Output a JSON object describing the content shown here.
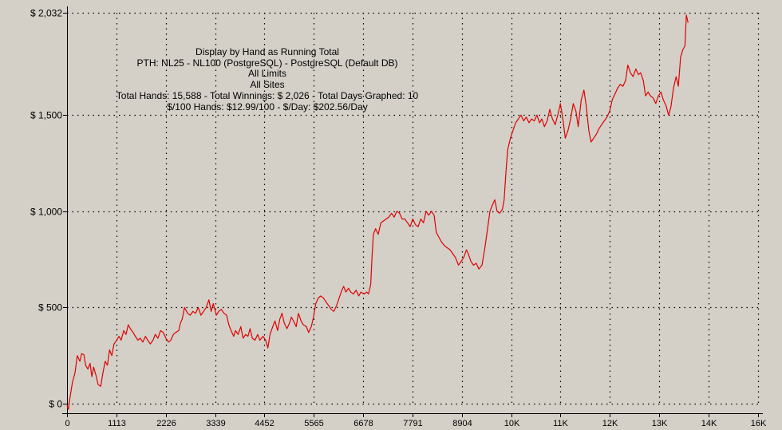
{
  "chart_data": {
    "type": "line",
    "annotations": [
      "Display by Hand as Running Total",
      "PTH: NL25 - NL100 (PostgreSQL) - PostgreSQL (Default DB)",
      "All Limits",
      "All Sites",
      "Total Hands: 15,588 - Total Winnings: $ 2,026 - Total Days Graphed: 10",
      "$/100 Hands: $12.99/100 - $/Day: $202.56/Day"
    ],
    "xlabel": "",
    "ylabel": "",
    "x_ticks": [
      {
        "value": 0,
        "label": "0"
      },
      {
        "value": 1113,
        "label": "1113"
      },
      {
        "value": 2226,
        "label": "2226"
      },
      {
        "value": 3339,
        "label": "3339"
      },
      {
        "value": 4452,
        "label": "4452"
      },
      {
        "value": 5565,
        "label": "5565"
      },
      {
        "value": 6678,
        "label": "6678"
      },
      {
        "value": 7791,
        "label": "7791"
      },
      {
        "value": 8904,
        "label": "8904"
      },
      {
        "value": 10017,
        "label": "10K"
      },
      {
        "value": 11130,
        "label": "11K"
      },
      {
        "value": 12243,
        "label": "12K"
      },
      {
        "value": 13356,
        "label": "13K"
      },
      {
        "value": 14469,
        "label": "14K"
      },
      {
        "value": 15582,
        "label": "16K"
      }
    ],
    "y_ticks": [
      {
        "value": 0,
        "label": "$ 0"
      },
      {
        "value": 500,
        "label": "$ 500"
      },
      {
        "value": 1000,
        "label": "$ 1,000"
      },
      {
        "value": 1500,
        "label": "$ 1,500"
      },
      {
        "value": 2032,
        "label": "$ 2,032"
      }
    ],
    "xlim": [
      0,
      15588
    ],
    "ylim": [
      -30,
      2032
    ],
    "grid": true,
    "series": [
      {
        "name": "",
        "color": "#e00000",
        "points": [
          [
            0,
            -10
          ],
          [
            30,
            -30
          ],
          [
            60,
            20
          ],
          [
            120,
            110
          ],
          [
            180,
            160
          ],
          [
            230,
            250
          ],
          [
            290,
            220
          ],
          [
            330,
            260
          ],
          [
            380,
            255
          ],
          [
            420,
            200
          ],
          [
            470,
            180
          ],
          [
            520,
            210
          ],
          [
            560,
            140
          ],
          [
            600,
            190
          ],
          [
            650,
            150
          ],
          [
            700,
            100
          ],
          [
            760,
            90
          ],
          [
            810,
            160
          ],
          [
            860,
            220
          ],
          [
            910,
            200
          ],
          [
            960,
            280
          ],
          [
            1010,
            250
          ],
          [
            1060,
            310
          ],
          [
            1120,
            330
          ],
          [
            1170,
            350
          ],
          [
            1220,
            330
          ],
          [
            1280,
            380
          ],
          [
            1330,
            360
          ],
          [
            1380,
            410
          ],
          [
            1430,
            390
          ],
          [
            1490,
            370
          ],
          [
            1540,
            350
          ],
          [
            1600,
            330
          ],
          [
            1650,
            340
          ],
          [
            1710,
            320
          ],
          [
            1770,
            350
          ],
          [
            1820,
            330
          ],
          [
            1880,
            310
          ],
          [
            1940,
            330
          ],
          [
            1990,
            360
          ],
          [
            2050,
            340
          ],
          [
            2110,
            380
          ],
          [
            2170,
            370
          ],
          [
            2230,
            340
          ],
          [
            2290,
            320
          ],
          [
            2340,
            330
          ],
          [
            2400,
            360
          ],
          [
            2450,
            370
          ],
          [
            2520,
            380
          ],
          [
            2560,
            420
          ],
          [
            2600,
            440
          ],
          [
            2650,
            500
          ],
          [
            2720,
            470
          ],
          [
            2780,
            460
          ],
          [
            2840,
            480
          ],
          [
            2900,
            470
          ],
          [
            2960,
            500
          ],
          [
            3020,
            460
          ],
          [
            3080,
            480
          ],
          [
            3140,
            500
          ],
          [
            3200,
            540
          ],
          [
            3250,
            480
          ],
          [
            3300,
            520
          ],
          [
            3370,
            460
          ],
          [
            3420,
            480
          ],
          [
            3480,
            490
          ],
          [
            3540,
            470
          ],
          [
            3600,
            460
          ],
          [
            3650,
            410
          ],
          [
            3700,
            380
          ],
          [
            3760,
            350
          ],
          [
            3800,
            380
          ],
          [
            3860,
            360
          ],
          [
            3920,
            400
          ],
          [
            3970,
            340
          ],
          [
            4030,
            360
          ],
          [
            4080,
            350
          ],
          [
            4130,
            390
          ],
          [
            4180,
            340
          ],
          [
            4240,
            330
          ],
          [
            4300,
            360
          ],
          [
            4350,
            330
          ],
          [
            4420,
            350
          ],
          [
            4480,
            330
          ],
          [
            4530,
            290
          ],
          [
            4580,
            360
          ],
          [
            4640,
            400
          ],
          [
            4690,
            430
          ],
          [
            4750,
            380
          ],
          [
            4800,
            440
          ],
          [
            4850,
            470
          ],
          [
            4900,
            420
          ],
          [
            4960,
            390
          ],
          [
            5020,
            420
          ],
          [
            5060,
            450
          ],
          [
            5110,
            430
          ],
          [
            5170,
            400
          ],
          [
            5220,
            470
          ],
          [
            5280,
            430
          ],
          [
            5330,
            410
          ],
          [
            5400,
            400
          ],
          [
            5450,
            370
          ],
          [
            5510,
            400
          ],
          [
            5560,
            450
          ],
          [
            5610,
            520
          ],
          [
            5670,
            550
          ],
          [
            5720,
            560
          ],
          [
            5780,
            550
          ],
          [
            5840,
            530
          ],
          [
            5900,
            510
          ],
          [
            5960,
            490
          ],
          [
            6020,
            480
          ],
          [
            6080,
            510
          ],
          [
            6140,
            550
          ],
          [
            6200,
            590
          ],
          [
            6240,
            610
          ],
          [
            6290,
            580
          ],
          [
            6350,
            600
          ],
          [
            6400,
            580
          ],
          [
            6460,
            570
          ],
          [
            6520,
            590
          ],
          [
            6580,
            560
          ],
          [
            6630,
            580
          ],
          [
            6700,
            570
          ],
          [
            6760,
            580
          ],
          [
            6800,
            570
          ],
          [
            6850,
            620
          ],
          [
            6880,
            760
          ],
          [
            6910,
            880
          ],
          [
            6960,
            910
          ],
          [
            7020,
            880
          ],
          [
            7080,
            940
          ],
          [
            7140,
            950
          ],
          [
            7200,
            960
          ],
          [
            7260,
            970
          ],
          [
            7320,
            990
          ],
          [
            7380,
            970
          ],
          [
            7440,
            1000
          ],
          [
            7500,
            990
          ],
          [
            7560,
            960
          ],
          [
            7620,
            960
          ],
          [
            7680,
            940
          ],
          [
            7740,
            920
          ],
          [
            7800,
            960
          ],
          [
            7860,
            930
          ],
          [
            7920,
            920
          ],
          [
            7980,
            960
          ],
          [
            8040,
            940
          ],
          [
            8100,
            1000
          ],
          [
            8160,
            980
          ],
          [
            8220,
            1000
          ],
          [
            8280,
            980
          ],
          [
            8330,
            890
          ],
          [
            8400,
            860
          ],
          [
            8450,
            840
          ],
          [
            8520,
            820
          ],
          [
            8580,
            810
          ],
          [
            8640,
            800
          ],
          [
            8700,
            780
          ],
          [
            8760,
            760
          ],
          [
            8830,
            720
          ],
          [
            8890,
            740
          ],
          [
            8950,
            760
          ],
          [
            9010,
            800
          ],
          [
            9050,
            780
          ],
          [
            9110,
            740
          ],
          [
            9170,
            720
          ],
          [
            9230,
            730
          ],
          [
            9290,
            700
          ],
          [
            9360,
            720
          ],
          [
            9420,
            800
          ],
          [
            9480,
            900
          ],
          [
            9540,
            1000
          ],
          [
            9590,
            1030
          ],
          [
            9650,
            1060
          ],
          [
            9700,
            1000
          ],
          [
            9760,
            990
          ],
          [
            9820,
            1010
          ],
          [
            9860,
            1060
          ],
          [
            9900,
            1200
          ],
          [
            9940,
            1320
          ],
          [
            10000,
            1380
          ],
          [
            10060,
            1420
          ],
          [
            10120,
            1460
          ],
          [
            10180,
            1480
          ],
          [
            10240,
            1500
          ],
          [
            10300,
            1470
          ],
          [
            10360,
            1490
          ],
          [
            10420,
            1460
          ],
          [
            10480,
            1480
          ],
          [
            10540,
            1470
          ],
          [
            10600,
            1500
          ],
          [
            10660,
            1460
          ],
          [
            10710,
            1480
          ],
          [
            10770,
            1440
          ],
          [
            10830,
            1470
          ],
          [
            10890,
            1530
          ],
          [
            10950,
            1480
          ],
          [
            11010,
            1450
          ],
          [
            11070,
            1500
          ],
          [
            11130,
            1560
          ],
          [
            11190,
            1470
          ],
          [
            11240,
            1380
          ],
          [
            11300,
            1420
          ],
          [
            11360,
            1480
          ],
          [
            11420,
            1560
          ],
          [
            11480,
            1520
          ],
          [
            11530,
            1440
          ],
          [
            11600,
            1580
          ],
          [
            11660,
            1630
          ],
          [
            11710,
            1550
          ],
          [
            11770,
            1420
          ],
          [
            11820,
            1360
          ],
          [
            11880,
            1380
          ],
          [
            11940,
            1400
          ],
          [
            12000,
            1430
          ],
          [
            12060,
            1450
          ],
          [
            12120,
            1470
          ],
          [
            12180,
            1490
          ],
          [
            12240,
            1520
          ],
          [
            12300,
            1580
          ],
          [
            12360,
            1610
          ],
          [
            12420,
            1640
          ],
          [
            12480,
            1660
          ],
          [
            12540,
            1650
          ],
          [
            12600,
            1680
          ],
          [
            12650,
            1760
          ],
          [
            12710,
            1720
          ],
          [
            12770,
            1700
          ],
          [
            12830,
            1740
          ],
          [
            12890,
            1710
          ],
          [
            12940,
            1720
          ],
          [
            13000,
            1680
          ],
          [
            13050,
            1600
          ],
          [
            13110,
            1620
          ],
          [
            13160,
            1600
          ],
          [
            13220,
            1590
          ],
          [
            13280,
            1560
          ],
          [
            13340,
            1600
          ],
          [
            13400,
            1620
          ],
          [
            13450,
            1580
          ],
          [
            13510,
            1550
          ],
          [
            13570,
            1500
          ],
          [
            13620,
            1540
          ],
          [
            13680,
            1640
          ],
          [
            13740,
            1700
          ],
          [
            13790,
            1650
          ],
          [
            13840,
            1800
          ],
          [
            13890,
            1840
          ],
          [
            13940,
            1860
          ],
          [
            13970,
            2020
          ],
          [
            14010,
            1980
          ]
        ]
      }
    ]
  }
}
